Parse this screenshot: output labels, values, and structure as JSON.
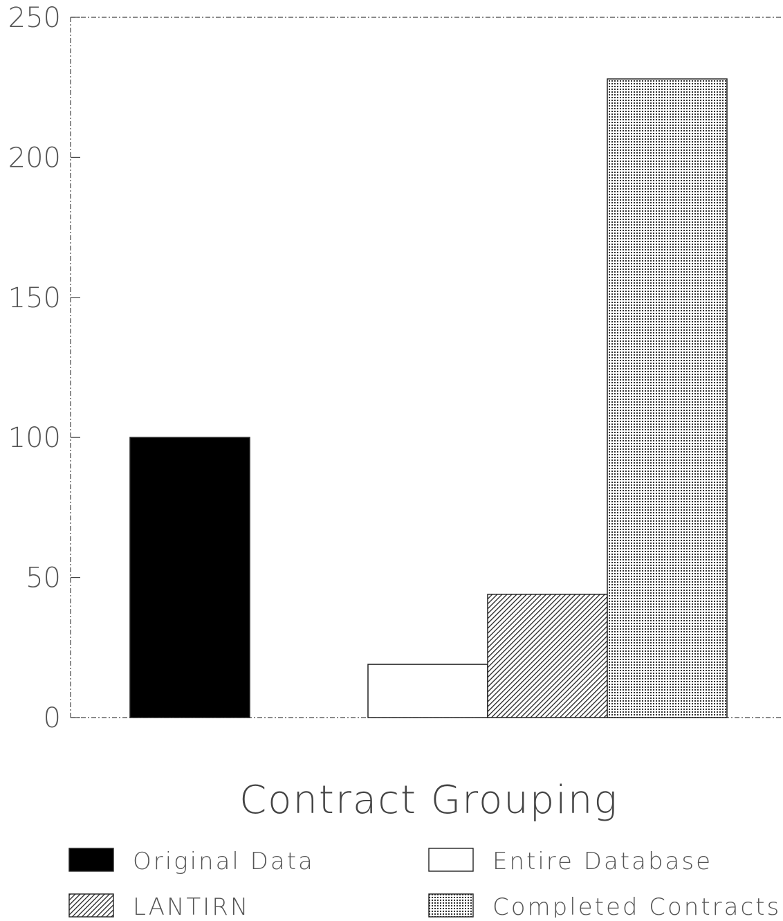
{
  "chart_data": {
    "type": "bar",
    "xlabel": "Contract Grouping",
    "ylabel": "",
    "ylim": [
      0,
      250
    ],
    "yticks": [
      0,
      50,
      100,
      150,
      200,
      250
    ],
    "ytick_labels": [
      "0",
      "50",
      "100",
      "150",
      "200",
      "250"
    ],
    "grid": false,
    "legend_position": "bottom",
    "series": [
      {
        "name": "Original Data",
        "value": 100,
        "group": 1,
        "fill": "solid",
        "color": "#000000"
      },
      {
        "name": "Entire Database",
        "value": 19,
        "group": 2,
        "fill": "none",
        "color": "#ffffff"
      },
      {
        "name": "LANTIRN",
        "value": 44,
        "group": 2,
        "fill": "hatch",
        "color": "#333333"
      },
      {
        "name": "Completed Contracts",
        "value": 228,
        "group": 2,
        "fill": "dots",
        "color": "#555555"
      }
    ],
    "legend": [
      {
        "label": "Original Data",
        "fill": "solid"
      },
      {
        "label": "Entire Database",
        "fill": "none"
      },
      {
        "label": "LANTIRN",
        "fill": "hatch"
      },
      {
        "label": "Completed Contracts",
        "fill": "dots"
      }
    ]
  }
}
